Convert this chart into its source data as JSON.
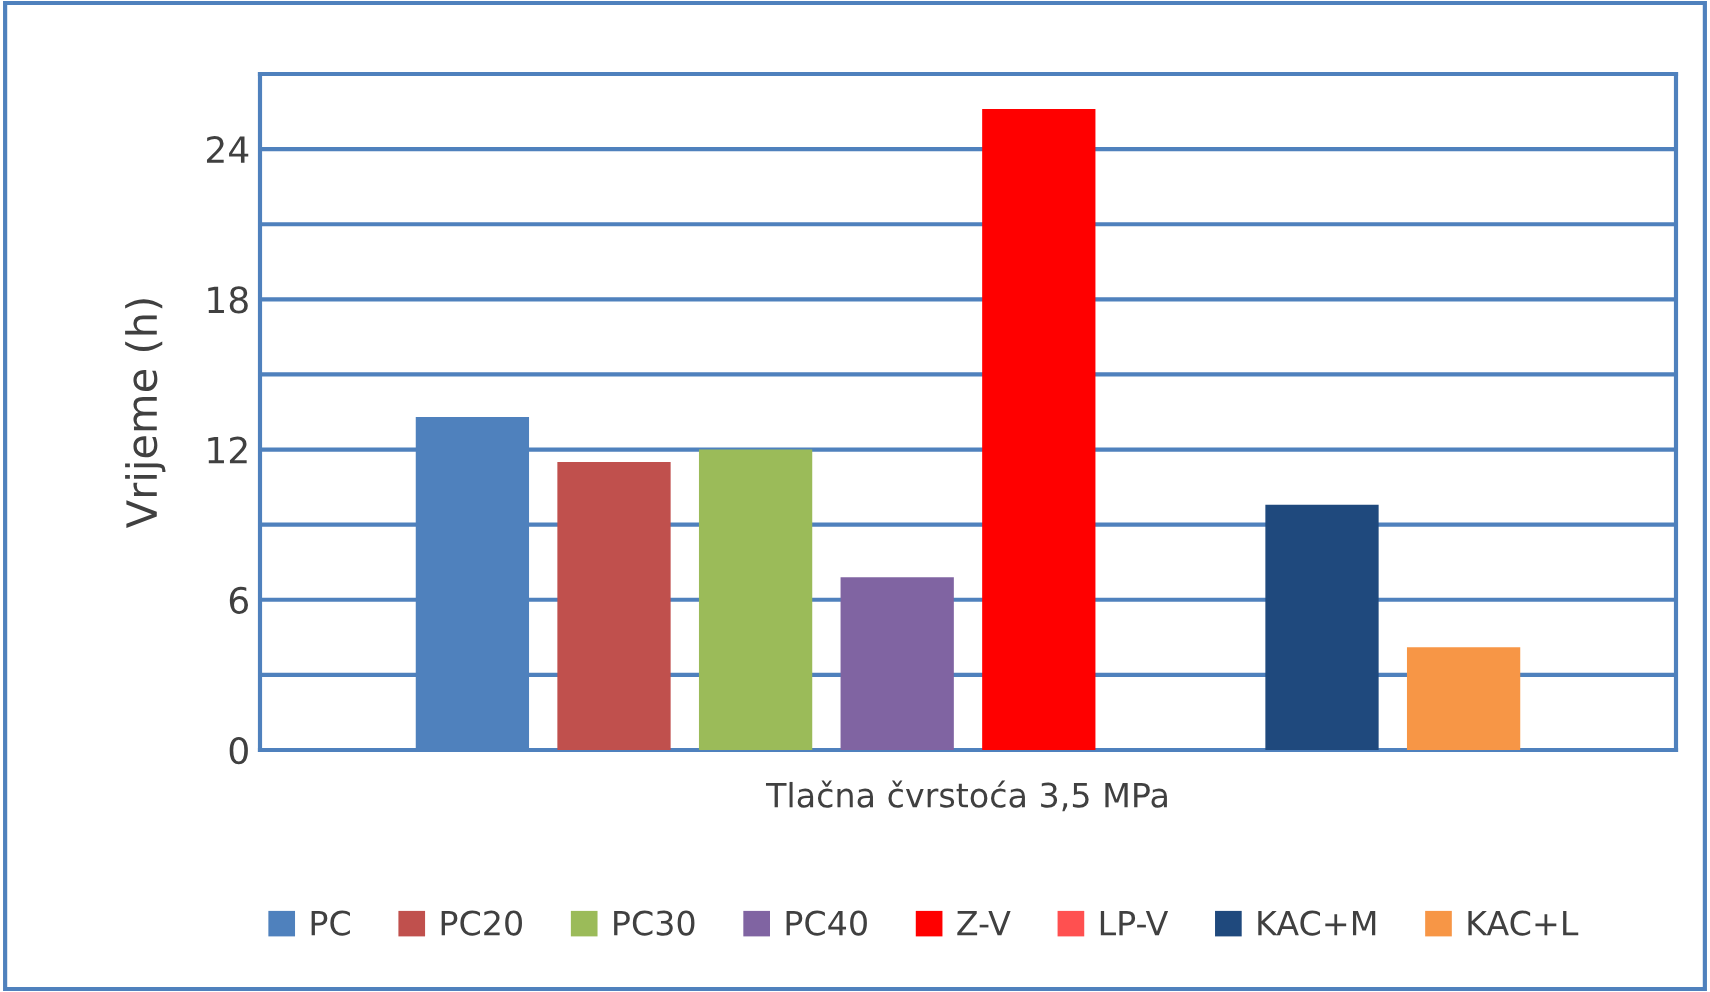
{
  "chart_data": {
    "type": "bar",
    "xlabel": "Tlačna čvrstoća 3,5 MPa",
    "ylabel": "Vrijeme (h)",
    "categories": [
      null
    ],
    "series": [
      {
        "name": "PC",
        "color": "#4f81bd",
        "values": [
          13.3
        ]
      },
      {
        "name": "PC20",
        "color": "#c0504d",
        "values": [
          11.5
        ]
      },
      {
        "name": "PC30",
        "color": "#9bbb59",
        "values": [
          12.0
        ]
      },
      {
        "name": "PC40",
        "color": "#8064a2",
        "values": [
          6.9
        ]
      },
      {
        "name": "Z-V",
        "color": "#ff0000",
        "values": [
          25.6
        ]
      },
      {
        "name": "LP-V",
        "color": "#ff5050",
        "values": [
          null
        ]
      },
      {
        "name": "KAC+M",
        "color": "#1f497d",
        "values": [
          9.8
        ]
      },
      {
        "name": "KAC+L",
        "color": "#f79646",
        "values": [
          4.1
        ]
      }
    ],
    "ylim": [
      0,
      27
    ],
    "yticks": [
      0,
      {
        "value": 3,
        "label": null
      },
      6,
      {
        "value": 9,
        "label": null
      },
      12,
      {
        "value": 15,
        "label": null
      },
      18,
      {
        "value": 21,
        "label": null
      },
      24,
      {
        "value": 27,
        "label": null
      }
    ],
    "grid": "y",
    "legend": "bottom"
  }
}
